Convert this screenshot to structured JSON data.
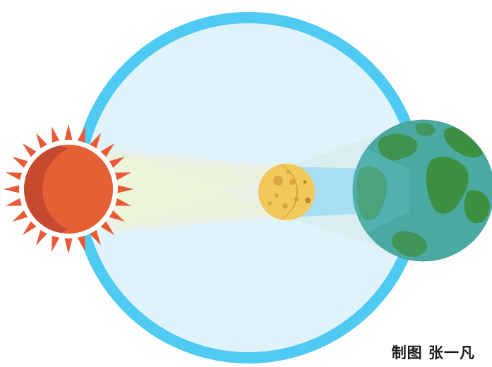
{
  "credit": "制图 张一凡",
  "colors": {
    "orbit_ring": "#4fcaf3",
    "orbit_fill": "#e1f3fa",
    "sun_core": "#e76035",
    "sun_shade": "#c54a2f",
    "sun_rays": "#e85a35",
    "moon": "#f2c85a",
    "moon_shade": "#d6a43f",
    "earth_ocean": "#3ca59b",
    "earth_land": "#3d8f42",
    "light_beam": "#eef3d8",
    "shadow_beam": "#a8dff0"
  },
  "icons": {
    "sun": "sun-icon",
    "moon": "moon-icon",
    "earth": "earth-icon"
  }
}
